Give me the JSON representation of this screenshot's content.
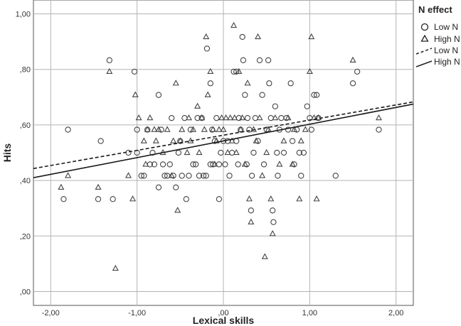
{
  "chart_data": {
    "type": "scatter",
    "xlabel": "Lexical skills",
    "ylabel": "Hits",
    "xlim": [
      -2.2,
      2.2
    ],
    "ylim": [
      -0.05,
      1.05
    ],
    "x_ticks": [
      -2,
      -1,
      0,
      1,
      2
    ],
    "x_tick_labels": [
      "-2,00",
      "-1,00",
      ",00",
      "1,00",
      "2,00"
    ],
    "y_ticks": [
      0,
      0.2,
      0.4,
      0.6,
      0.8,
      1.0
    ],
    "y_tick_labels": [
      ",00",
      ",20",
      ",40",
      ",60",
      ",80",
      "1,00"
    ],
    "grid": true,
    "legend": {
      "title": "N effect",
      "placement": "right",
      "items": [
        {
          "label": "Low N",
          "marker": "circle"
        },
        {
          "label": "High N",
          "marker": "triangle"
        },
        {
          "label": "Low N",
          "line": "dashed"
        },
        {
          "label": "High N",
          "line": "solid"
        }
      ]
    },
    "series": [
      {
        "name": "Low N",
        "marker": "circle",
        "points": [
          [
            -1.85,
            0.333
          ],
          [
            -1.8,
            0.583
          ],
          [
            -1.45,
            0.333
          ],
          [
            -1.42,
            0.542
          ],
          [
            -1.32,
            0.833
          ],
          [
            -1.28,
            0.333
          ],
          [
            -1.1,
            0.5
          ],
          [
            -1.03,
            0.792
          ],
          [
            -1.0,
            0.5
          ],
          [
            -1.0,
            0.583
          ],
          [
            -0.95,
            0.417
          ],
          [
            -0.92,
            0.417
          ],
          [
            -0.88,
            0.583
          ],
          [
            -0.85,
            0.458
          ],
          [
            -0.82,
            0.5
          ],
          [
            -0.8,
            0.458
          ],
          [
            -0.75,
            0.708
          ],
          [
            -0.75,
            0.375
          ],
          [
            -0.72,
            0.583
          ],
          [
            -0.7,
            0.458
          ],
          [
            -0.68,
            0.417
          ],
          [
            -0.65,
            0.417
          ],
          [
            -0.62,
            0.458
          ],
          [
            -0.6,
            0.625
          ],
          [
            -0.58,
            0.417
          ],
          [
            -0.55,
            0.375
          ],
          [
            -0.52,
            0.5
          ],
          [
            -0.5,
            0.542
          ],
          [
            -0.48,
            0.417
          ],
          [
            -0.45,
            0.625
          ],
          [
            -0.43,
            0.333
          ],
          [
            -0.4,
            0.417
          ],
          [
            -0.38,
            0.583
          ],
          [
            -0.35,
            0.458
          ],
          [
            -0.32,
            0.458
          ],
          [
            -0.3,
            0.625
          ],
          [
            -0.28,
            0.417
          ],
          [
            -0.25,
            0.625
          ],
          [
            -0.23,
            0.417
          ],
          [
            -0.2,
            0.417
          ],
          [
            -0.19,
            0.875
          ],
          [
            -0.15,
            0.75
          ],
          [
            -0.15,
            0.458
          ],
          [
            -0.13,
            0.583
          ],
          [
            -0.12,
            0.458
          ],
          [
            -0.1,
            0.542
          ],
          [
            -0.08,
            0.625
          ],
          [
            -0.05,
            0.458
          ],
          [
            -0.05,
            0.333
          ],
          [
            -0.03,
            0.5
          ],
          [
            0.0,
            0.542
          ],
          [
            0.02,
            0.458
          ],
          [
            0.05,
            0.542
          ],
          [
            0.07,
            0.417
          ],
          [
            0.1,
            0.5
          ],
          [
            0.12,
            0.792
          ],
          [
            0.15,
            0.792
          ],
          [
            0.15,
            0.542
          ],
          [
            0.17,
            0.458
          ],
          [
            0.18,
            0.625
          ],
          [
            0.2,
            0.583
          ],
          [
            0.22,
            0.917
          ],
          [
            0.23,
            0.833
          ],
          [
            0.25,
            0.708
          ],
          [
            0.27,
            0.458
          ],
          [
            0.28,
            0.625
          ],
          [
            0.3,
            0.583
          ],
          [
            0.32,
            0.292
          ],
          [
            0.33,
            0.417
          ],
          [
            0.35,
            0.5
          ],
          [
            0.37,
            0.625
          ],
          [
            0.4,
            0.542
          ],
          [
            0.42,
            0.833
          ],
          [
            0.45,
            0.708
          ],
          [
            0.47,
            0.458
          ],
          [
            0.5,
            0.583
          ],
          [
            0.52,
            0.833
          ],
          [
            0.53,
            0.75
          ],
          [
            0.55,
            0.625
          ],
          [
            0.57,
            0.292
          ],
          [
            0.58,
            0.25
          ],
          [
            0.6,
            0.667
          ],
          [
            0.62,
            0.5
          ],
          [
            0.63,
            0.417
          ],
          [
            0.65,
            0.583
          ],
          [
            0.67,
            0.625
          ],
          [
            0.7,
            0.5
          ],
          [
            0.73,
            0.625
          ],
          [
            0.75,
            0.583
          ],
          [
            0.78,
            0.75
          ],
          [
            0.8,
            0.542
          ],
          [
            0.82,
            0.458
          ],
          [
            0.85,
            0.583
          ],
          [
            0.88,
            0.5
          ],
          [
            0.9,
            0.417
          ],
          [
            0.93,
            0.5
          ],
          [
            0.97,
            0.667
          ],
          [
            1.0,
            0.625
          ],
          [
            1.02,
            0.583
          ],
          [
            1.05,
            0.708
          ],
          [
            1.08,
            0.708
          ],
          [
            1.1,
            0.625
          ],
          [
            1.3,
            0.417
          ],
          [
            1.5,
            0.75
          ],
          [
            1.55,
            0.792
          ],
          [
            1.8,
            0.583
          ]
        ]
      },
      {
        "name": "High N",
        "marker": "triangle",
        "points": [
          [
            -1.88,
            0.375
          ],
          [
            -1.8,
            0.417
          ],
          [
            -1.45,
            0.375
          ],
          [
            -1.32,
            0.792
          ],
          [
            -1.25,
            0.083
          ],
          [
            -1.1,
            0.417
          ],
          [
            -1.05,
            0.333
          ],
          [
            -1.02,
            0.708
          ],
          [
            -0.98,
            0.625
          ],
          [
            -0.92,
            0.542
          ],
          [
            -0.9,
            0.458
          ],
          [
            -0.88,
            0.583
          ],
          [
            -0.85,
            0.625
          ],
          [
            -0.8,
            0.583
          ],
          [
            -0.78,
            0.542
          ],
          [
            -0.75,
            0.583
          ],
          [
            -0.7,
            0.5
          ],
          [
            -0.65,
            0.583
          ],
          [
            -0.6,
            0.417
          ],
          [
            -0.58,
            0.542
          ],
          [
            -0.55,
            0.75
          ],
          [
            -0.53,
            0.292
          ],
          [
            -0.5,
            0.542
          ],
          [
            -0.48,
            0.583
          ],
          [
            -0.42,
            0.5
          ],
          [
            -0.4,
            0.625
          ],
          [
            -0.38,
            0.542
          ],
          [
            -0.35,
            0.583
          ],
          [
            -0.3,
            0.667
          ],
          [
            -0.28,
            0.5
          ],
          [
            -0.25,
            0.625
          ],
          [
            -0.22,
            0.583
          ],
          [
            -0.2,
            0.917
          ],
          [
            -0.18,
            0.708
          ],
          [
            -0.15,
            0.792
          ],
          [
            -0.12,
            0.583
          ],
          [
            -0.1,
            0.458
          ],
          [
            -0.08,
            0.542
          ],
          [
            -0.05,
            0.583
          ],
          [
            -0.02,
            0.625
          ],
          [
            0.0,
            0.583
          ],
          [
            0.03,
            0.625
          ],
          [
            0.05,
            0.5
          ],
          [
            0.08,
            0.625
          ],
          [
            0.1,
            0.542
          ],
          [
            0.12,
            0.958
          ],
          [
            0.13,
            0.625
          ],
          [
            0.15,
            0.5
          ],
          [
            0.18,
            0.792
          ],
          [
            0.2,
            0.583
          ],
          [
            0.22,
            0.625
          ],
          [
            0.25,
            0.458
          ],
          [
            0.28,
            0.75
          ],
          [
            0.3,
            0.333
          ],
          [
            0.32,
            0.25
          ],
          [
            0.35,
            0.583
          ],
          [
            0.38,
            0.542
          ],
          [
            0.4,
            0.917
          ],
          [
            0.42,
            0.625
          ],
          [
            0.45,
            0.417
          ],
          [
            0.48,
            0.125
          ],
          [
            0.5,
            0.5
          ],
          [
            0.52,
            0.583
          ],
          [
            0.55,
            0.333
          ],
          [
            0.57,
            0.208
          ],
          [
            0.6,
            0.625
          ],
          [
            0.65,
            0.458
          ],
          [
            0.7,
            0.542
          ],
          [
            0.75,
            0.625
          ],
          [
            0.8,
            0.458
          ],
          [
            0.82,
            0.583
          ],
          [
            0.88,
            0.333
          ],
          [
            0.9,
            0.542
          ],
          [
            0.95,
            0.583
          ],
          [
            1.0,
            0.792
          ],
          [
            1.02,
            0.917
          ],
          [
            1.05,
            0.625
          ],
          [
            1.08,
            0.333
          ],
          [
            1.1,
            0.625
          ],
          [
            1.5,
            0.833
          ],
          [
            1.8,
            0.625
          ]
        ]
      }
    ],
    "fit_lines": [
      {
        "name": "Low N",
        "style": "dashed",
        "x": [
          -2.2,
          2.2
        ],
        "y": [
          0.443,
          0.683
        ]
      },
      {
        "name": "High N",
        "style": "solid",
        "x": [
          -2.2,
          2.2
        ],
        "y": [
          0.41,
          0.675
        ]
      }
    ]
  }
}
